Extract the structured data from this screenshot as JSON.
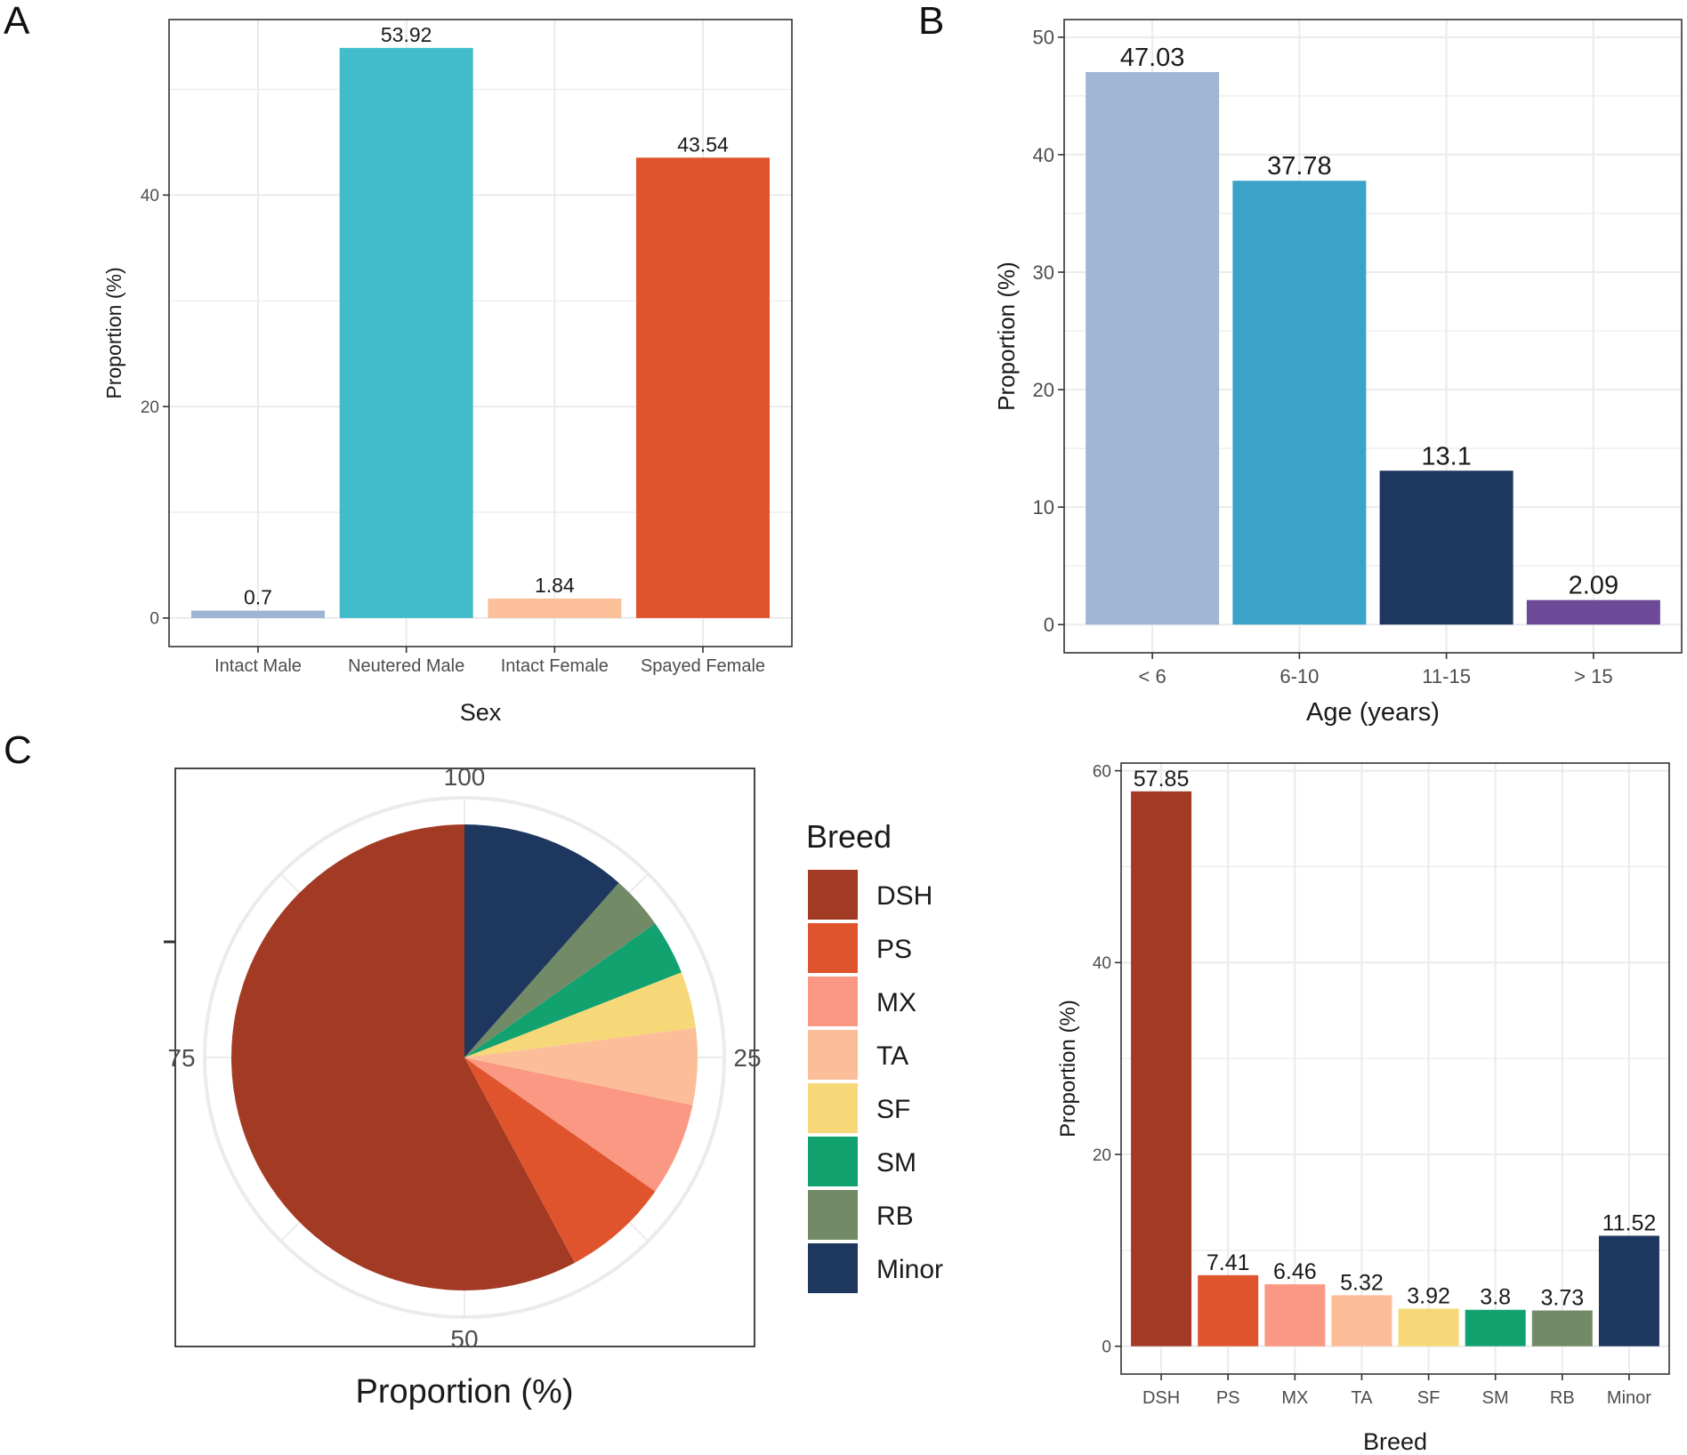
{
  "panel_labels": {
    "a": "A",
    "b": "B",
    "c": "C"
  },
  "chart_data": [
    {
      "id": "A",
      "type": "bar",
      "title": "",
      "xlabel": "Sex",
      "ylabel": "Proportion (%)",
      "categories": [
        "Intact Male",
        "Neutered Male",
        "Intact Female",
        "Spayed Female"
      ],
      "values": [
        0.7,
        53.92,
        1.84,
        43.54
      ],
      "labels": [
        "0.7",
        "53.92",
        "1.84",
        "43.54"
      ],
      "colors": [
        "#9fb4d4",
        "#42bccb",
        "#fbbf99",
        "#e0542d"
      ],
      "ylim": [
        -2.7,
        56.6
      ],
      "yticks": [
        0,
        20,
        40
      ],
      "grid": true
    },
    {
      "id": "B",
      "type": "bar",
      "title": "",
      "xlabel": "Age (years)",
      "ylabel": "Proportion (%)",
      "categories": [
        "< 6",
        "6-10",
        "11-15",
        "> 15"
      ],
      "values": [
        47.03,
        37.78,
        13.1,
        2.09
      ],
      "labels": [
        "47.03",
        "37.78",
        "13.1",
        "2.09"
      ],
      "colors": [
        "#a1b5d5",
        "#3ba3c7",
        "#1e375e",
        "#6c4a98"
      ],
      "ylim": [
        -2.4,
        51.5
      ],
      "yticks": [
        0,
        10,
        20,
        30,
        40,
        50
      ],
      "grid": true
    },
    {
      "id": "C",
      "type": "pie",
      "title": "",
      "xlabel": "Proportion (%)",
      "legend_title": "Breed",
      "legend_position": "right",
      "categories": [
        "DSH",
        "PS",
        "MX",
        "TA",
        "SF",
        "SM",
        "RB",
        "Minor"
      ],
      "values": [
        57.85,
        7.41,
        6.46,
        5.32,
        3.92,
        3.8,
        3.73,
        11.52
      ],
      "colors": [
        "#a33a24",
        "#e0542d",
        "#fb9883",
        "#fcbe98",
        "#f6d878",
        "#12a270",
        "#738a67",
        "#1e375e"
      ],
      "radial_ticks": [
        100,
        75,
        50,
        25
      ],
      "radial_tick_labels": [
        "100",
        "75",
        "50",
        "25"
      ]
    },
    {
      "id": "D",
      "type": "bar",
      "title": "",
      "xlabel": "Breed",
      "ylabel": "Proportion (%)",
      "categories": [
        "DSH",
        "PS",
        "MX",
        "TA",
        "SF",
        "SM",
        "RB",
        "Minor"
      ],
      "values": [
        57.85,
        7.41,
        6.46,
        5.32,
        3.92,
        3.8,
        3.73,
        11.52
      ],
      "labels": [
        "57.85",
        "7.41",
        "6.46",
        "5.32",
        "3.92",
        "3.8",
        "3.73",
        "11.52"
      ],
      "colors": [
        "#a33a24",
        "#e0542d",
        "#fb9883",
        "#fcbe98",
        "#f6d878",
        "#12a270",
        "#738a67",
        "#1e375e"
      ],
      "ylim": [
        -2.9,
        60.8
      ],
      "yticks": [
        0,
        20,
        40,
        60
      ],
      "grid": true
    }
  ]
}
